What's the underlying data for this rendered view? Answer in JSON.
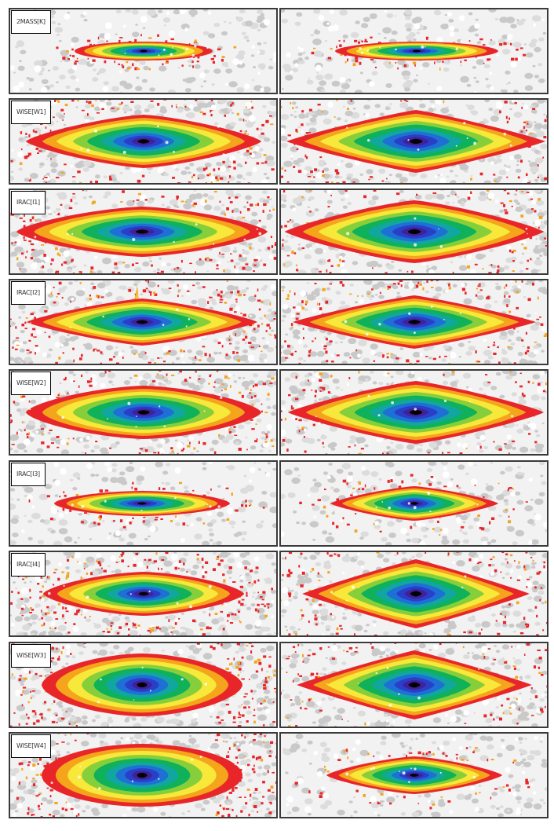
{
  "colormap": [
    "#e8262a",
    "#f4a51c",
    "#f8e83a",
    "#86cf3a",
    "#0fb15a",
    "#12a6a0",
    "#1e6fd6",
    "#2a3fc8",
    "#42209a",
    "#000000"
  ],
  "rows": [
    {
      "label": "2MASS[K]",
      "panels": [
        {
          "side": "left",
          "halo": "light",
          "feature": "none"
        },
        {
          "side": "right",
          "halo": "light",
          "feature": "none"
        }
      ]
    },
    {
      "label": "WISE[W1]",
      "panels": [
        {
          "side": "left",
          "halo": "heavy",
          "feature": "none"
        },
        {
          "side": "right",
          "halo": "heavy",
          "feature": "none"
        }
      ]
    },
    {
      "label": "IRAC[I1]",
      "panels": [
        {
          "side": "left",
          "halo": "heavy",
          "feature": "none"
        },
        {
          "side": "right",
          "halo": "heavy",
          "feature": "none"
        }
      ]
    },
    {
      "label": "IRAC[I2]",
      "panels": [
        {
          "side": "left",
          "halo": "heavy",
          "feature": "spike"
        },
        {
          "side": "right",
          "halo": "heavy",
          "feature": "none"
        }
      ]
    },
    {
      "label": "WISE[W2]",
      "panels": [
        {
          "side": "left",
          "halo": "heavy",
          "feature": "none"
        },
        {
          "side": "right",
          "halo": "heavy",
          "feature": "none"
        }
      ]
    },
    {
      "label": "IRAC[I3]",
      "panels": [
        {
          "side": "left",
          "halo": "light",
          "feature": "none"
        },
        {
          "side": "right",
          "halo": "light",
          "feature": "none"
        }
      ]
    },
    {
      "label": "IRAC[I4]",
      "panels": [
        {
          "side": "left",
          "halo": "heavy",
          "feature": "none"
        },
        {
          "side": "right",
          "halo": "heavy",
          "feature": "none"
        }
      ]
    },
    {
      "label": "WISE[W3]",
      "panels": [
        {
          "side": "left",
          "halo": "very-heavy",
          "feature": "none"
        },
        {
          "side": "right",
          "halo": "heavy",
          "feature": "none"
        }
      ]
    },
    {
      "label": "WISE[W4]",
      "panels": [
        {
          "side": "left",
          "halo": "very-heavy",
          "feature": "none"
        },
        {
          "side": "right",
          "halo": "light",
          "feature": "none"
        }
      ]
    }
  ]
}
